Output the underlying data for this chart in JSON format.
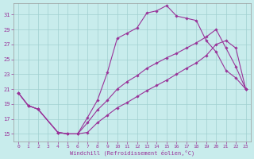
{
  "bg_color": "#c8ecec",
  "grid_color": "#a0d0d0",
  "line_color": "#993399",
  "marker_color": "#993399",
  "xlabel": "Windchill (Refroidissement éolien,°C)",
  "yticks": [
    15,
    17,
    19,
    21,
    23,
    25,
    27,
    29,
    31
  ],
  "xticks": [
    0,
    1,
    2,
    3,
    4,
    5,
    6,
    7,
    8,
    9,
    10,
    11,
    12,
    13,
    14,
    15,
    16,
    17,
    18,
    19,
    20,
    21,
    22,
    23
  ],
  "xlim": [
    -0.5,
    23.5
  ],
  "ylim": [
    14.0,
    32.5
  ],
  "series": [
    {
      "x": [
        0,
        1,
        2,
        4,
        5,
        6,
        7,
        8,
        9,
        10,
        11,
        12,
        13,
        14,
        15,
        16,
        17,
        18,
        19,
        20,
        21,
        22,
        23
      ],
      "y": [
        20.5,
        18.8,
        18.3,
        15.2,
        15.0,
        15.0,
        17.2,
        19.5,
        23.2,
        27.8,
        28.5,
        29.2,
        31.2,
        31.5,
        32.2,
        30.8,
        30.5,
        30.2,
        27.5,
        26.0,
        23.5,
        22.5,
        21.0
      ]
    },
    {
      "x": [
        0,
        1,
        2,
        4,
        5,
        6,
        7,
        8,
        9,
        10,
        11,
        12,
        13,
        14,
        15,
        16,
        17,
        18,
        19,
        20,
        21,
        22,
        23
      ],
      "y": [
        20.5,
        18.8,
        18.3,
        15.2,
        15.0,
        15.0,
        16.5,
        18.2,
        19.5,
        21.0,
        22.0,
        22.8,
        23.8,
        24.5,
        25.2,
        25.8,
        26.5,
        27.2,
        28.0,
        29.0,
        26.5,
        24.0,
        21.0
      ]
    },
    {
      "x": [
        0,
        1,
        2,
        4,
        5,
        6,
        7,
        8,
        9,
        10,
        11,
        12,
        13,
        14,
        15,
        16,
        17,
        18,
        19,
        20,
        21,
        22,
        23
      ],
      "y": [
        20.5,
        18.8,
        18.3,
        15.2,
        15.0,
        15.0,
        15.2,
        16.5,
        17.5,
        18.5,
        19.2,
        20.0,
        20.8,
        21.5,
        22.2,
        23.0,
        23.8,
        24.5,
        25.5,
        27.0,
        27.5,
        26.5,
        21.0
      ]
    }
  ]
}
